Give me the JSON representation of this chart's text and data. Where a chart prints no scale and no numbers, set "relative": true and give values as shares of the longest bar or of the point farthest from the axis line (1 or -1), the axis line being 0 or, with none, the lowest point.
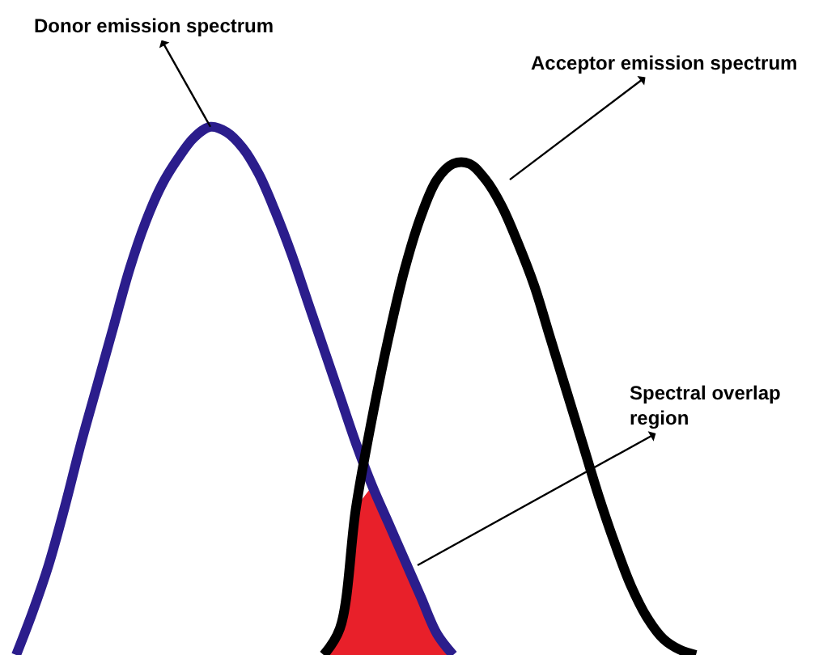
{
  "chart_data": {
    "type": "line",
    "relative": true,
    "marker": "none",
    "line_style": "solid",
    "categories": [
      null,
      null,
      null,
      null,
      null,
      null,
      null,
      null,
      null,
      null,
      null,
      null,
      null,
      null,
      null,
      null,
      null,
      null,
      null,
      null,
      null,
      null,
      null,
      null,
      null,
      null,
      null,
      null,
      null,
      null,
      null,
      null,
      null,
      null,
      null,
      null,
      null,
      null,
      null,
      null,
      null,
      null,
      null,
      null,
      null,
      null,
      null,
      null,
      null,
      null,
      null,
      null
    ],
    "series": [
      {
        "type": "area",
        "color": "#e8202a",
        "values": [
          null,
          null,
          null,
          null,
          null,
          null,
          null,
          null,
          null,
          null,
          null,
          null,
          null,
          null,
          null,
          null,
          null,
          null,
          null,
          null,
          0.0,
          0.05,
          0.28,
          0.32,
          0.25,
          0.18,
          0.11,
          0.04,
          0.0,
          null,
          null,
          null,
          null,
          null,
          null,
          null,
          null,
          null,
          null,
          null,
          null,
          null,
          null,
          null,
          null,
          null,
          null,
          null,
          null,
          null,
          null,
          null
        ]
      },
      {
        "color": "#2b1d8c",
        "values": [
          null,
          0.0,
          0.08,
          0.17,
          0.28,
          0.4,
          0.51,
          0.62,
          0.73,
          0.82,
          0.89,
          0.94,
          0.98,
          1.0,
          0.99,
          0.96,
          0.91,
          0.84,
          0.76,
          0.67,
          0.58,
          0.49,
          0.4,
          0.32,
          0.25,
          0.18,
          0.11,
          0.04,
          0.0,
          null,
          null,
          null,
          null,
          null,
          null,
          null,
          null,
          null,
          null,
          null,
          null,
          null,
          null,
          null,
          null,
          null,
          null,
          null,
          null,
          null,
          null,
          null
        ]
      },
      {
        "color": "#000000",
        "values": [
          null,
          null,
          null,
          null,
          null,
          null,
          null,
          null,
          null,
          null,
          null,
          null,
          null,
          null,
          null,
          null,
          null,
          null,
          null,
          null,
          0.0,
          0.05,
          0.28,
          0.45,
          0.6,
          0.73,
          0.83,
          0.9,
          0.93,
          0.93,
          0.9,
          0.85,
          0.78,
          0.7,
          0.6,
          0.5,
          0.4,
          0.3,
          0.21,
          0.13,
          0.07,
          0.03,
          0.01,
          0.0,
          null,
          null,
          null,
          null,
          null,
          null,
          null,
          null
        ]
      }
    ],
    "annotations": [
      "Donor emission spectrum",
      "Acceptor emission spectrum",
      "Spectral overlap\nregion"
    ]
  }
}
